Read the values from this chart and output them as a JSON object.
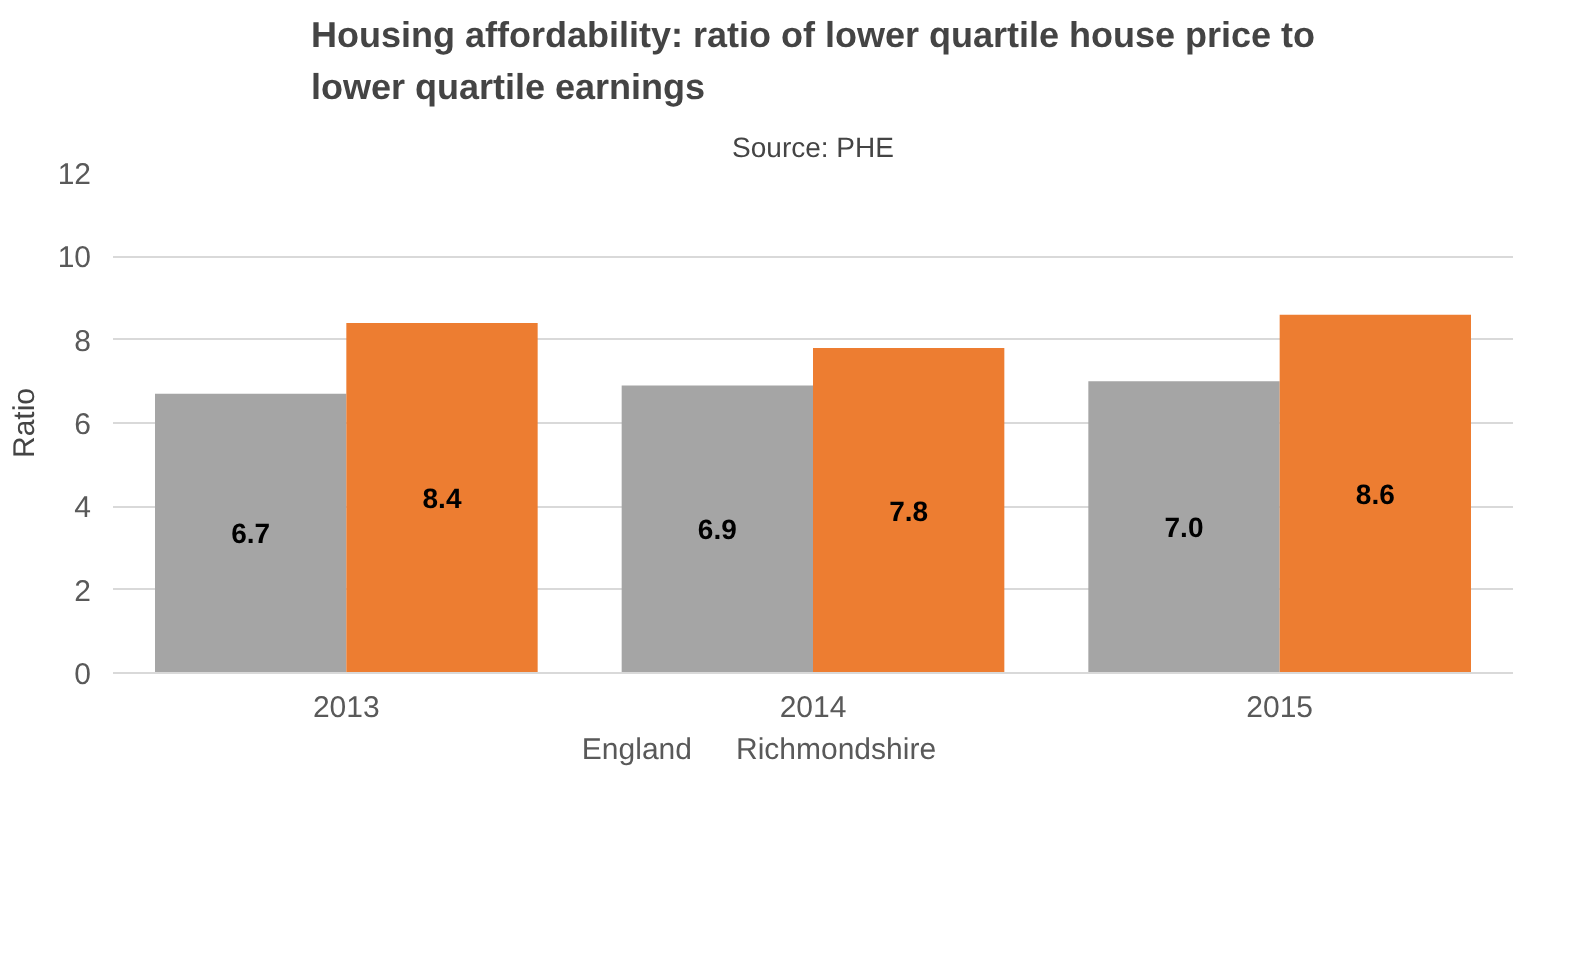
{
  "chart_data": {
    "type": "bar",
    "title": "Housing affordability: ratio of lower quartile house price to lower quartile earnings",
    "subtitle": "Source: PHE",
    "ylabel": "Ratio",
    "categories": [
      "2013",
      "2014",
      "2015"
    ],
    "series": [
      {
        "name": "England",
        "color": "#a5a5a5",
        "values": [
          6.7,
          6.9,
          7.0
        ],
        "value_labels": [
          "6.7",
          "6.9",
          "7.0"
        ]
      },
      {
        "name": "Richmondshire",
        "color": "#ed7d31",
        "values": [
          8.4,
          7.8,
          8.6
        ],
        "value_labels": [
          "8.4",
          "7.8",
          "8.6"
        ]
      }
    ],
    "ylim": [
      0,
      12
    ],
    "yticks": [
      0,
      2,
      4,
      6,
      8,
      10,
      12
    ],
    "grid": "y",
    "legend": "bottom",
    "data_labels": true
  }
}
